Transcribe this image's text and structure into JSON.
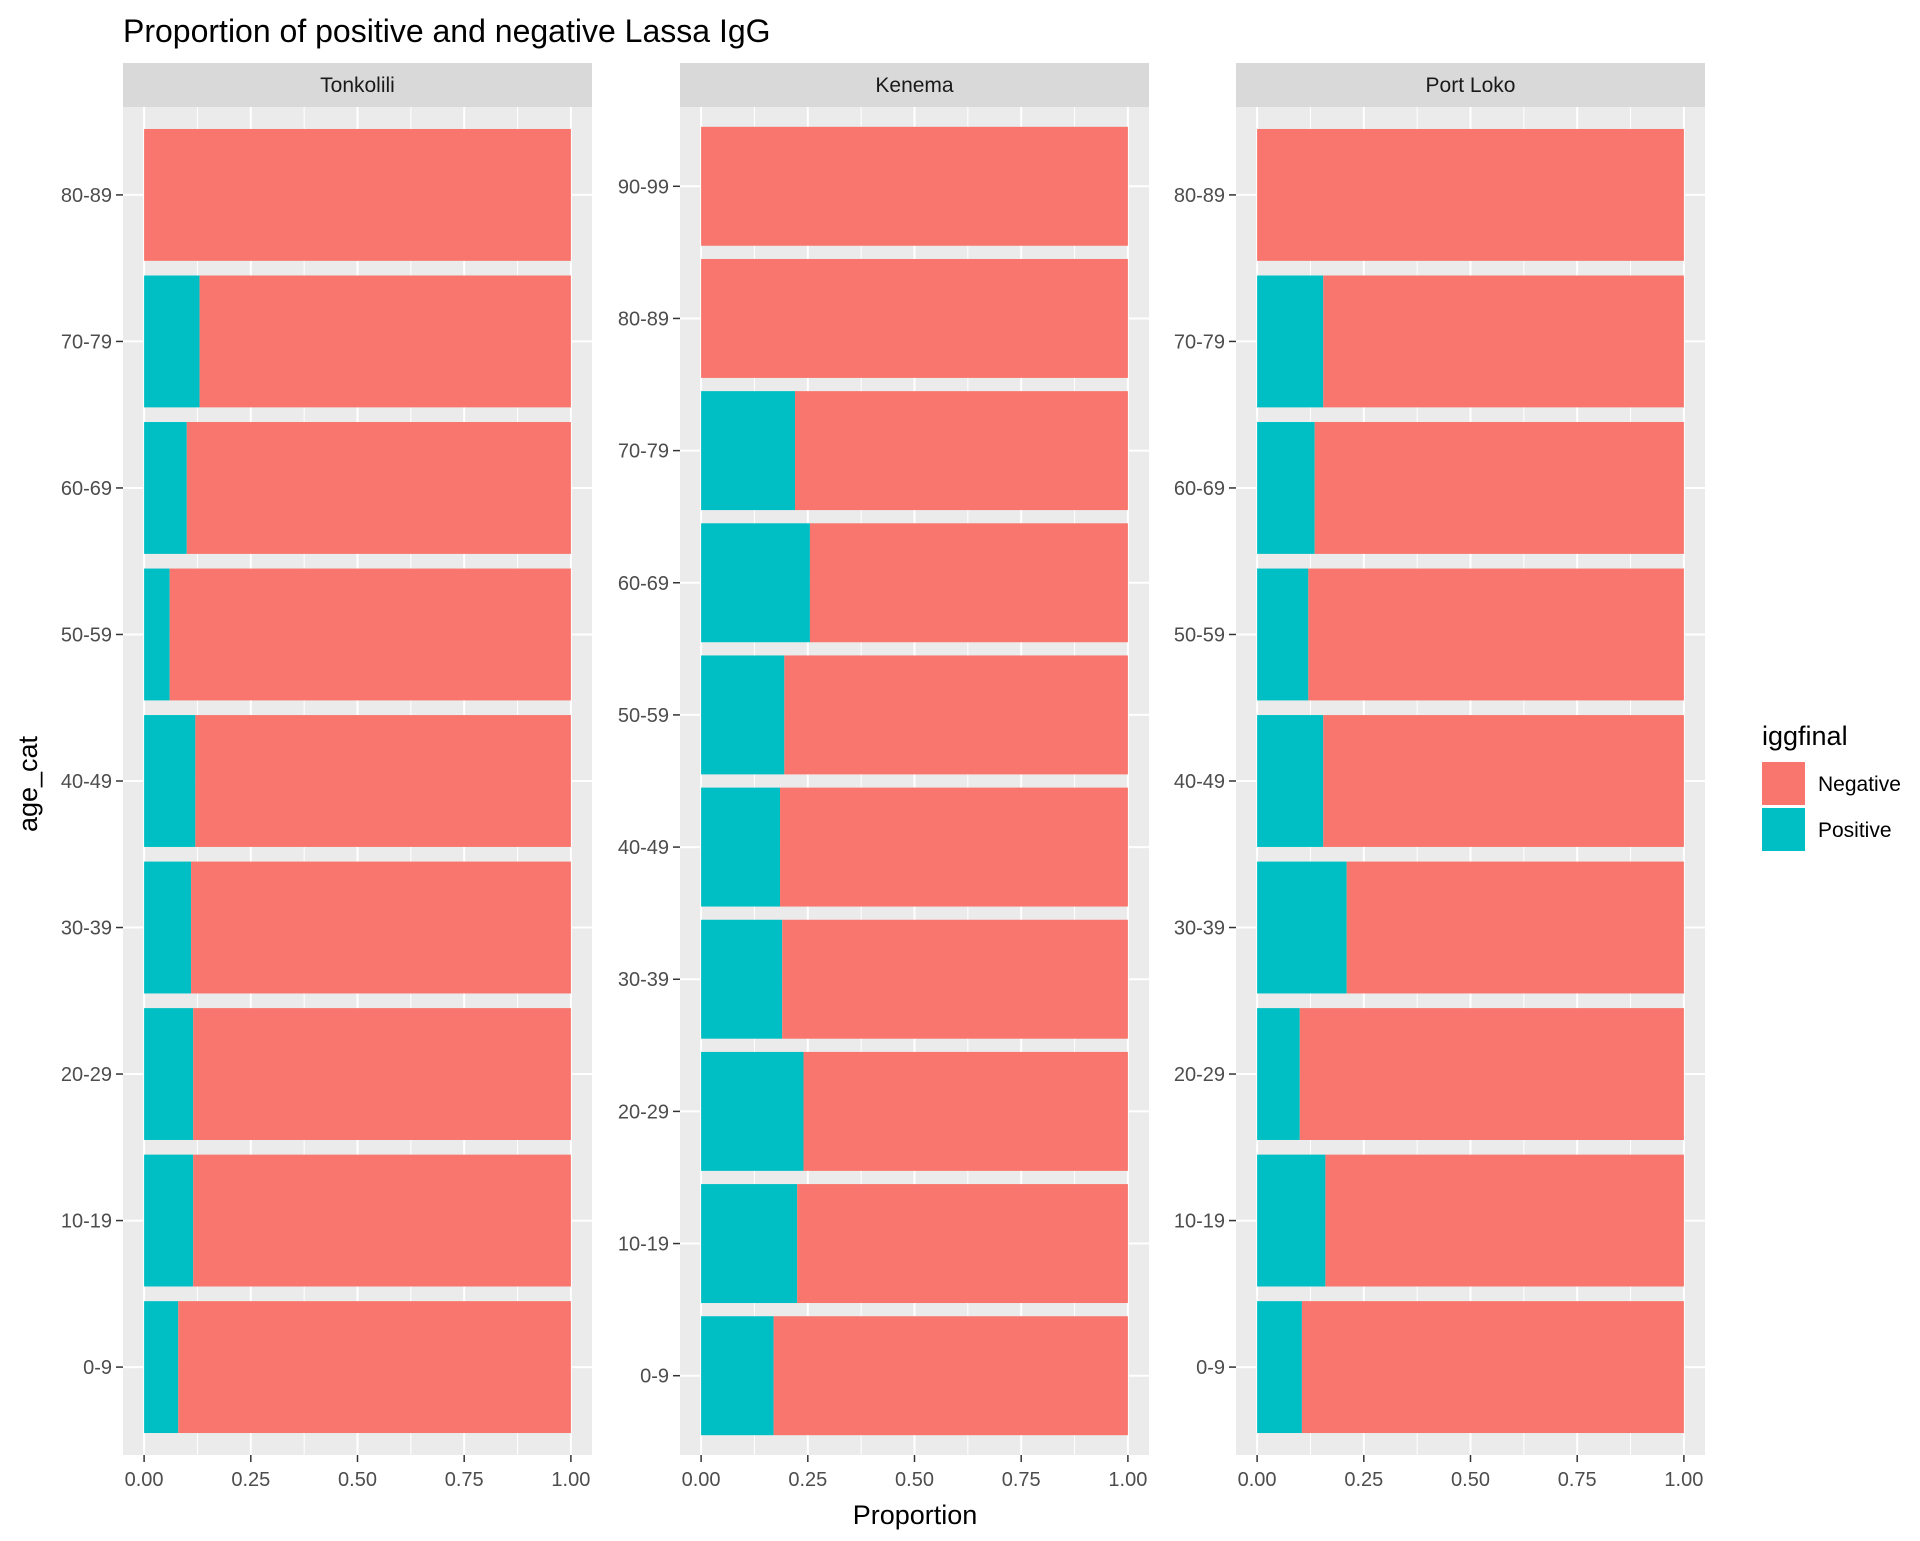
{
  "chart_data": {
    "type": "bar",
    "orientation": "horizontal",
    "stacked": true,
    "title": "Proportion of positive and negative Lassa IgG",
    "xlabel": "Proportion",
    "ylabel": "age_cat",
    "xlim": [
      0,
      1
    ],
    "x_ticks": [
      "0.00",
      "0.25",
      "0.50",
      "0.75",
      "1.00"
    ],
    "grid": true,
    "legend": {
      "title": "iggfinal",
      "placement": "right",
      "entries": [
        {
          "name": "Negative",
          "color": "#F8766D"
        },
        {
          "name": "Positive",
          "color": "#00BFC4"
        }
      ]
    },
    "facets": [
      {
        "name": "Tonkolili",
        "categories": [
          "0-9",
          "10-19",
          "20-29",
          "30-39",
          "40-49",
          "50-59",
          "60-69",
          "70-79",
          "80-89"
        ],
        "series": [
          {
            "name": "Positive",
            "values": [
              0.08,
              0.115,
              0.115,
              0.11,
              0.12,
              0.06,
              0.1,
              0.13,
              0.0
            ]
          },
          {
            "name": "Negative",
            "values": [
              0.92,
              0.885,
              0.885,
              0.89,
              0.88,
              0.94,
              0.9,
              0.87,
              1.0
            ]
          }
        ]
      },
      {
        "name": "Kenema",
        "categories": [
          "0-9",
          "10-19",
          "20-29",
          "30-39",
          "40-49",
          "50-59",
          "60-69",
          "70-79",
          "80-89",
          "90-99"
        ],
        "series": [
          {
            "name": "Positive",
            "values": [
              0.17,
              0.225,
              0.24,
              0.19,
              0.185,
              0.195,
              0.255,
              0.22,
              0.0,
              0.0
            ]
          },
          {
            "name": "Negative",
            "values": [
              0.83,
              0.775,
              0.76,
              0.81,
              0.815,
              0.805,
              0.745,
              0.78,
              1.0,
              1.0
            ]
          }
        ]
      },
      {
        "name": "Port Loko",
        "categories": [
          "0-9",
          "10-19",
          "20-29",
          "30-39",
          "40-49",
          "50-59",
          "60-69",
          "70-79",
          "80-89"
        ],
        "series": [
          {
            "name": "Positive",
            "values": [
              0.105,
              0.16,
              0.1,
              0.21,
              0.155,
              0.12,
              0.135,
              0.155,
              0.0
            ]
          },
          {
            "name": "Negative",
            "values": [
              0.895,
              0.84,
              0.9,
              0.79,
              0.845,
              0.88,
              0.865,
              0.845,
              1.0
            ]
          }
        ]
      }
    ]
  }
}
